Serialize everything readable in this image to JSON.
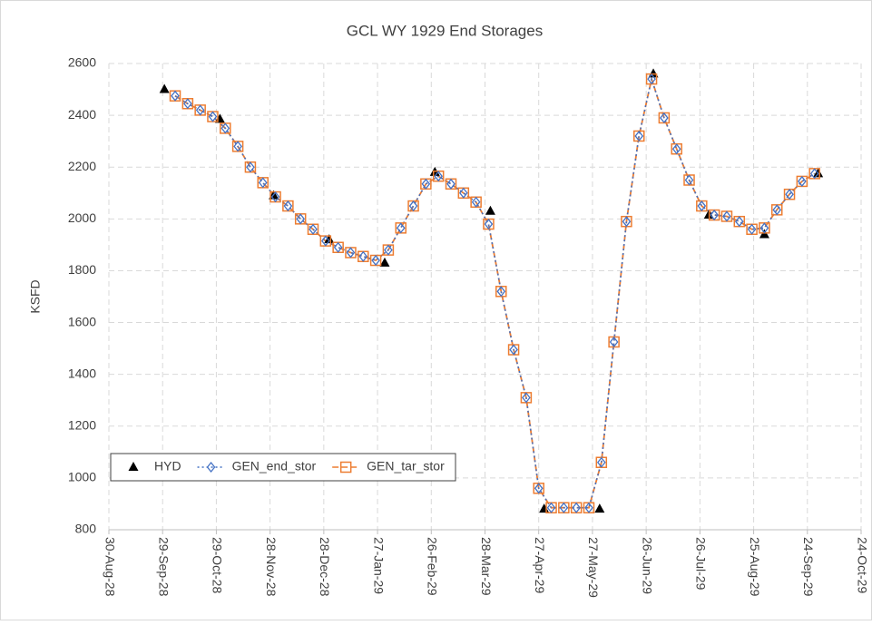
{
  "chart_data": {
    "type": "line",
    "title": "GCL WY 1929 End Storages",
    "y_label": "KSFD",
    "xlim": [
      "1928-08-30",
      "1929-10-24"
    ],
    "xticks": [
      {
        "value": "1928-08-30",
        "label": "30-Aug-28"
      },
      {
        "value": "1928-09-29",
        "label": "29-Sep-28"
      },
      {
        "value": "1928-10-29",
        "label": "29-Oct-28"
      },
      {
        "value": "1928-11-28",
        "label": "28-Nov-28"
      },
      {
        "value": "1928-12-28",
        "label": "28-Dec-28"
      },
      {
        "value": "1929-01-27",
        "label": "27-Jan-29"
      },
      {
        "value": "1929-02-26",
        "label": "26-Feb-29"
      },
      {
        "value": "1929-03-28",
        "label": "28-Mar-29"
      },
      {
        "value": "1929-04-27",
        "label": "27-Apr-29"
      },
      {
        "value": "1929-05-27",
        "label": "27-May-29"
      },
      {
        "value": "1929-06-26",
        "label": "26-Jun-29"
      },
      {
        "value": "1929-07-26",
        "label": "26-Jul-29"
      },
      {
        "value": "1929-08-25",
        "label": "25-Aug-29"
      },
      {
        "value": "1929-09-24",
        "label": "24-Sep-29"
      },
      {
        "value": "1929-10-24",
        "label": "24-Oct-29"
      }
    ],
    "ylim": [
      800,
      2600
    ],
    "yticks": [
      800,
      1000,
      1200,
      1400,
      1600,
      1800,
      2000,
      2200,
      2400,
      2600
    ],
    "grid": true,
    "legend": "lower left",
    "series": [
      {
        "name": "HYD",
        "color": "#000000",
        "marker": "triangle",
        "line": "none",
        "x": [
          "1928-09-30",
          "1928-10-31",
          "1928-11-30",
          "1928-12-31",
          "1929-01-31",
          "1929-02-28",
          "1929-03-31",
          "1929-04-30",
          "1929-05-31",
          "1929-06-30",
          "1929-07-31",
          "1929-08-31",
          "1929-09-30"
        ],
        "values": [
          2500,
          2385,
          2090,
          1920,
          1830,
          2180,
          2030,
          880,
          880,
          2560,
          2015,
          1940,
          2175
        ]
      },
      {
        "name": "GEN_tar_stor",
        "color": "#ed7d31",
        "marker": "square",
        "line": "dashed",
        "x": [
          "1928-10-06",
          "1928-10-13",
          "1928-10-20",
          "1928-10-27",
          "1928-11-03",
          "1928-11-10",
          "1928-11-17",
          "1928-11-24",
          "1928-12-01",
          "1928-12-08",
          "1928-12-15",
          "1928-12-22",
          "1928-12-29",
          "1929-01-05",
          "1929-01-12",
          "1929-01-19",
          "1929-01-26",
          "1929-02-02",
          "1929-02-09",
          "1929-02-16",
          "1929-02-23",
          "1929-03-02",
          "1929-03-09",
          "1929-03-16",
          "1929-03-23",
          "1929-03-30",
          "1929-04-06",
          "1929-04-13",
          "1929-04-20",
          "1929-04-27",
          "1929-05-04",
          "1929-05-11",
          "1929-05-18",
          "1929-05-25",
          "1929-06-01",
          "1929-06-08",
          "1929-06-15",
          "1929-06-22",
          "1929-06-29",
          "1929-07-06",
          "1929-07-13",
          "1929-07-20",
          "1929-07-27",
          "1929-08-03",
          "1929-08-10",
          "1929-08-17",
          "1929-08-24",
          "1929-08-31",
          "1929-09-07",
          "1929-09-14",
          "1929-09-21",
          "1929-09-28"
        ],
        "values": [
          2475,
          2445,
          2420,
          2395,
          2350,
          2280,
          2200,
          2140,
          2085,
          2050,
          2000,
          1960,
          1915,
          1890,
          1870,
          1855,
          1840,
          1880,
          1965,
          2050,
          2135,
          2165,
          2135,
          2100,
          2065,
          1980,
          1720,
          1495,
          1310,
          960,
          885,
          885,
          885,
          885,
          1060,
          1525,
          1990,
          2320,
          2540,
          2390,
          2270,
          2150,
          2050,
          2015,
          2010,
          1990,
          1960,
          1965,
          2035,
          2095,
          2145,
          2175
        ]
      },
      {
        "name": "GEN_end_stor",
        "color": "#4472c4",
        "marker": "diamond",
        "line": "dotted",
        "x": [
          "1928-10-06",
          "1928-10-13",
          "1928-10-20",
          "1928-10-27",
          "1928-11-03",
          "1928-11-10",
          "1928-11-17",
          "1928-11-24",
          "1928-12-01",
          "1928-12-08",
          "1928-12-15",
          "1928-12-22",
          "1928-12-29",
          "1929-01-05",
          "1929-01-12",
          "1929-01-19",
          "1929-01-26",
          "1929-02-02",
          "1929-02-09",
          "1929-02-16",
          "1929-02-23",
          "1929-03-02",
          "1929-03-09",
          "1929-03-16",
          "1929-03-23",
          "1929-03-30",
          "1929-04-06",
          "1929-04-13",
          "1929-04-20",
          "1929-04-27",
          "1929-05-04",
          "1929-05-11",
          "1929-05-18",
          "1929-05-25",
          "1929-06-01",
          "1929-06-08",
          "1929-06-15",
          "1929-06-22",
          "1929-06-29",
          "1929-07-06",
          "1929-07-13",
          "1929-07-20",
          "1929-07-27",
          "1929-08-03",
          "1929-08-10",
          "1929-08-17",
          "1929-08-24",
          "1929-08-31",
          "1929-09-07",
          "1929-09-14",
          "1929-09-21",
          "1929-09-28"
        ],
        "values": [
          2475,
          2445,
          2420,
          2395,
          2350,
          2280,
          2200,
          2140,
          2085,
          2050,
          2000,
          1960,
          1915,
          1890,
          1870,
          1855,
          1840,
          1880,
          1965,
          2050,
          2135,
          2165,
          2135,
          2100,
          2065,
          1980,
          1720,
          1495,
          1310,
          960,
          885,
          885,
          885,
          885,
          1060,
          1525,
          1990,
          2320,
          2540,
          2390,
          2270,
          2150,
          2050,
          2015,
          2010,
          1990,
          1960,
          1965,
          2035,
          2095,
          2145,
          2175
        ]
      }
    ]
  }
}
